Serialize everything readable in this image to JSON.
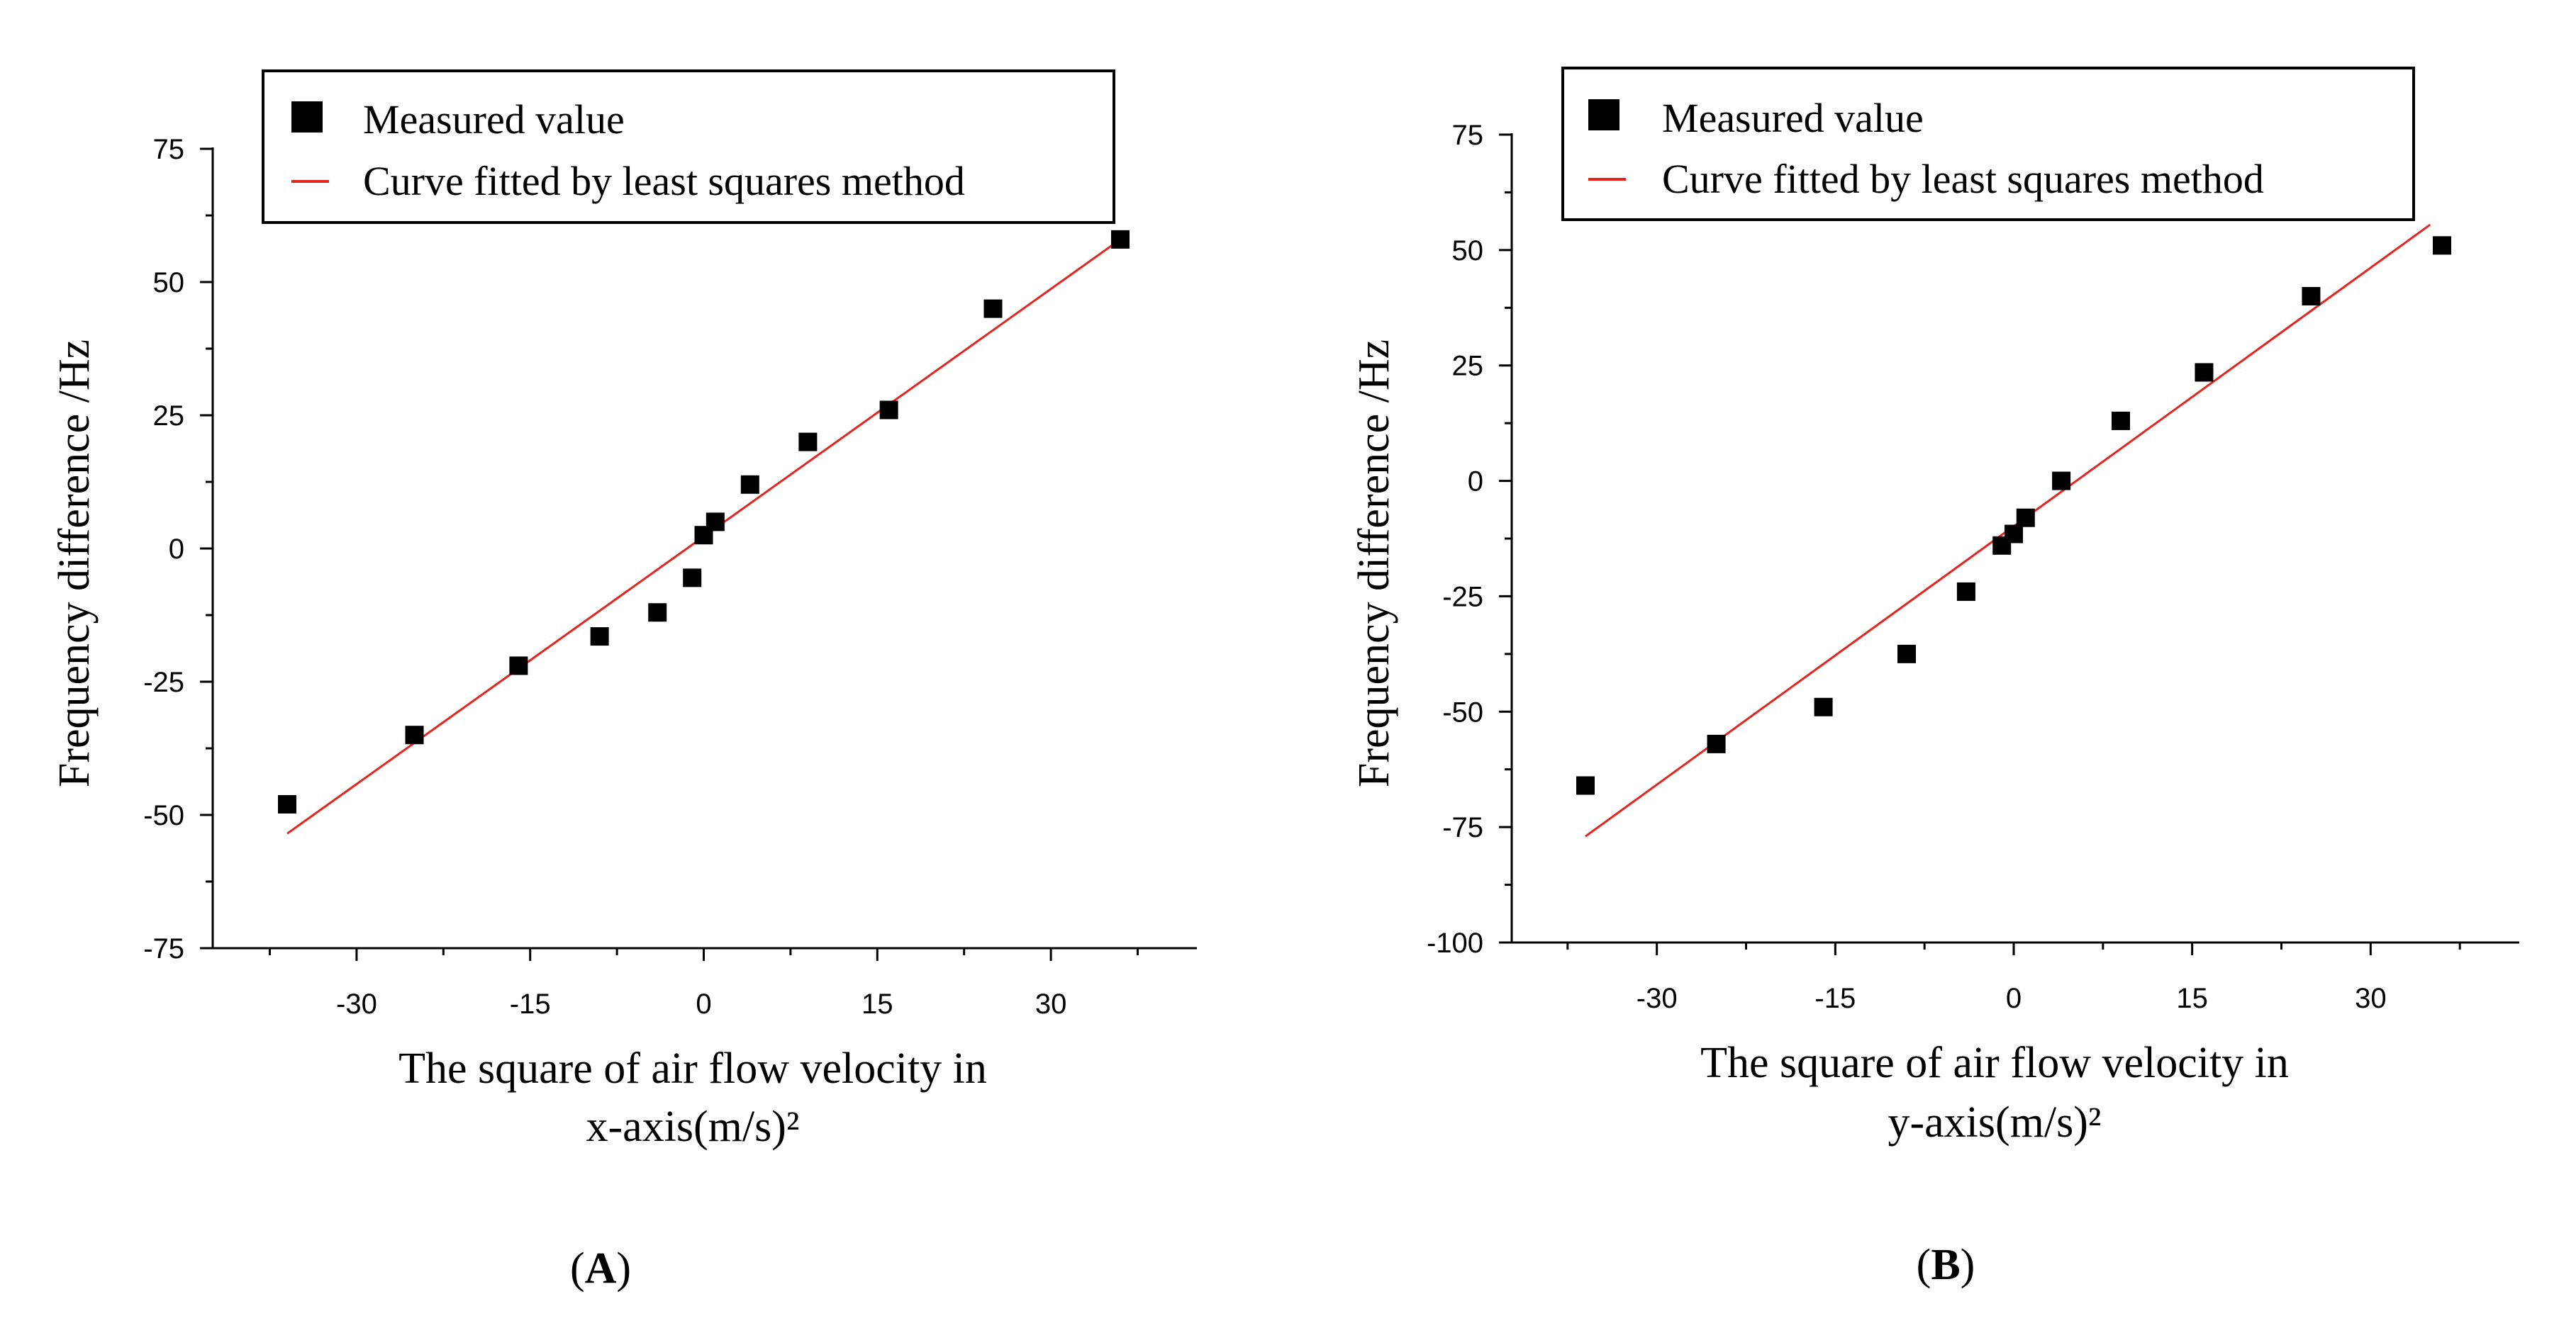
{
  "colors": {
    "fit_line": "#e8231c",
    "marker": "#000000",
    "axis": "#000000"
  },
  "chart_data": [
    {
      "type": "scatter",
      "panel_label": "A",
      "xlabel": [
        "The square of air flow velocity in",
        "x-axis(m/s)²"
      ],
      "ylabel": "Frequency difference /Hz",
      "xlim": [
        -42,
        43
      ],
      "ylim": [
        -75,
        75
      ],
      "xticks": [
        -30,
        -15,
        0,
        15,
        30
      ],
      "yticks": [
        -75,
        -50,
        -25,
        0,
        25,
        50,
        75
      ],
      "legend": {
        "position": "top",
        "markers_label": "Measured value",
        "line_label": "Curve fitted by least squares method"
      },
      "series": [
        {
          "name": "Measured value",
          "marker": "square",
          "x": [
            -36,
            -25,
            -16,
            -9,
            -4,
            -1,
            0,
            1,
            4,
            9,
            16,
            25,
            36
          ],
          "y": [
            -48,
            -35,
            -22,
            -16.5,
            -12,
            -5.5,
            2.5,
            5,
            12,
            20,
            26,
            45,
            58
          ]
        },
        {
          "name": "Curve fitted by least squares method",
          "line": true,
          "x": [
            -36,
            36
          ],
          "y": [
            -53.5,
            58
          ]
        }
      ]
    },
    {
      "type": "scatter",
      "panel_label": "B",
      "xlabel": [
        "The square of air flow velocity in",
        "y-axis(m/s)²"
      ],
      "ylabel": "Frequency difference /Hz",
      "xlim": [
        -42,
        43
      ],
      "ylim": [
        -100,
        75
      ],
      "xticks": [
        -30,
        -15,
        0,
        15,
        30
      ],
      "yticks": [
        -100,
        -75,
        -50,
        -25,
        0,
        25,
        50,
        75
      ],
      "legend": {
        "position": "top",
        "markers_label": "Measured value",
        "line_label": "Curve fitted by least squares method"
      },
      "series": [
        {
          "name": "Measured value",
          "marker": "square",
          "x": [
            -36,
            -25,
            -16,
            -9,
            -4,
            -1,
            0,
            1,
            4,
            9,
            16,
            25,
            36
          ],
          "y": [
            -66,
            -57,
            -49,
            -37.5,
            -24,
            -14,
            -11.5,
            -8,
            0,
            13,
            23.5,
            40,
            51
          ]
        },
        {
          "name": "Curve fitted by least squares method",
          "line": true,
          "x": [
            -36,
            35
          ],
          "y": [
            -77,
            55.5
          ]
        }
      ]
    }
  ]
}
